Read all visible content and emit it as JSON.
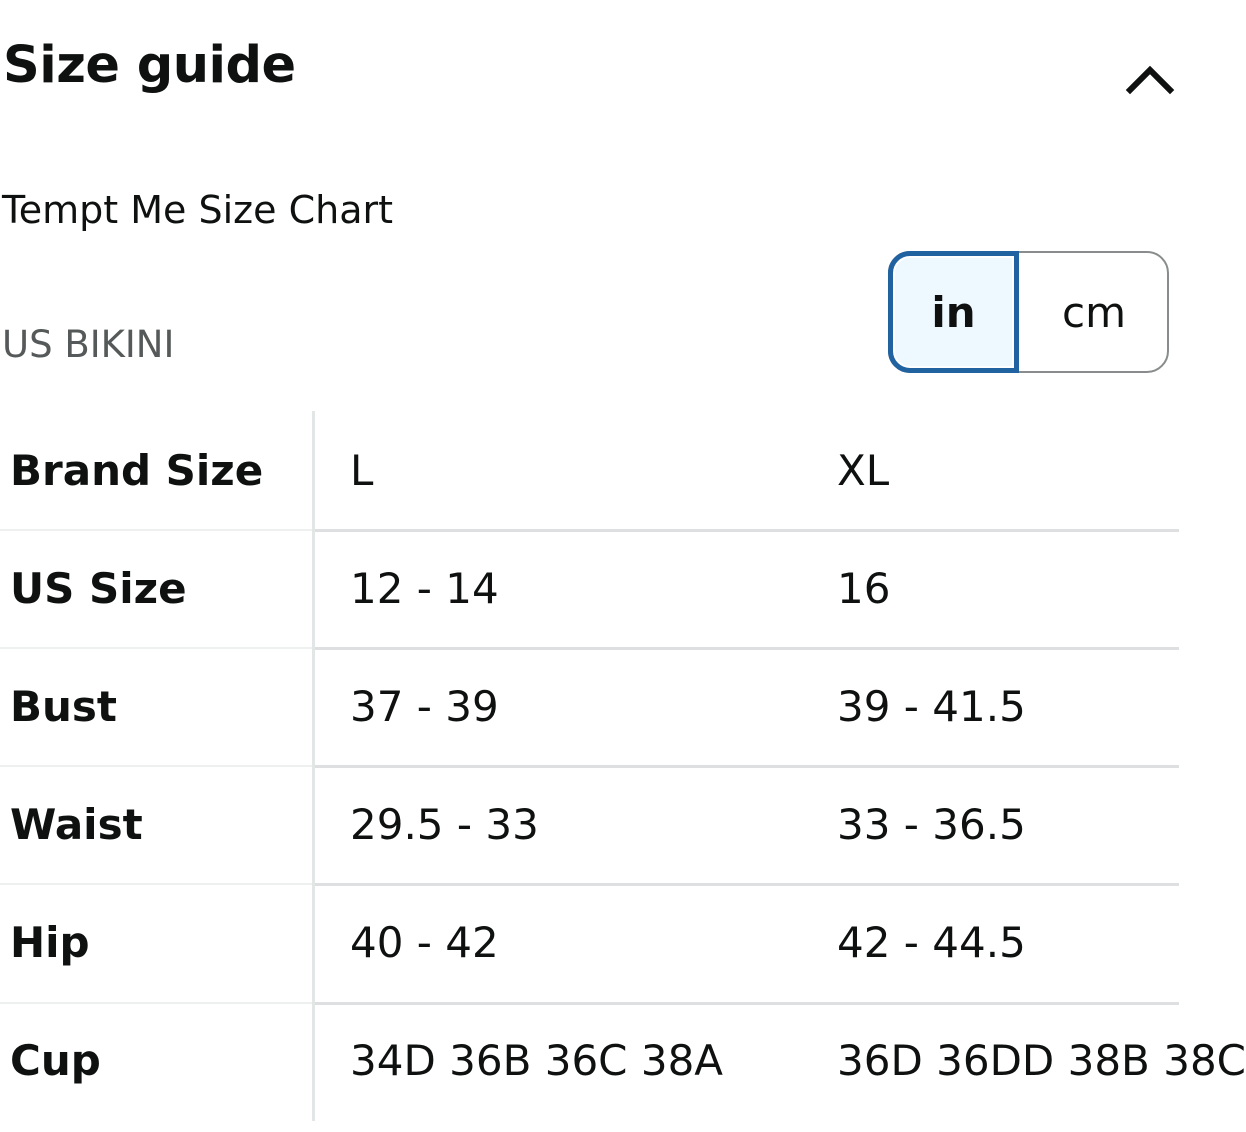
{
  "header": {
    "title": "Size guide",
    "collapse_icon": "chevron-up-icon"
  },
  "chart_name": "Tempt Me Size Chart",
  "region": "US BIKINI",
  "units": {
    "options": [
      "in",
      "cm"
    ],
    "selected": "in"
  },
  "colors": {
    "text": "#0f1111",
    "muted": "#565959",
    "selected_border": "#2162a1",
    "selected_bg": "#edf8ff",
    "divider": "#dddfe0"
  },
  "table": {
    "rows": [
      {
        "label": "Brand Size",
        "values": [
          "L",
          "XL"
        ]
      },
      {
        "label": "US Size",
        "values": [
          "12 - 14",
          "16"
        ]
      },
      {
        "label": "Bust",
        "values": [
          "37 - 39",
          "39 - 41.5"
        ]
      },
      {
        "label": "Waist",
        "values": [
          "29.5 - 33",
          "33 - 36.5"
        ]
      },
      {
        "label": "Hip",
        "values": [
          "40 - 42",
          "42 - 44.5"
        ]
      },
      {
        "label": "Cup",
        "values": [
          "34D 36B 36C 38A",
          "36D 36DD 38B 38C"
        ]
      }
    ]
  }
}
